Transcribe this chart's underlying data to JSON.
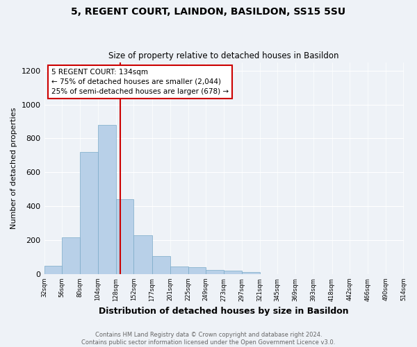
{
  "title": "5, REGENT COURT, LAINDON, BASILDON, SS15 5SU",
  "subtitle": "Size of property relative to detached houses in Basildon",
  "xlabel": "Distribution of detached houses by size in Basildon",
  "ylabel": "Number of detached properties",
  "footer_line1": "Contains HM Land Registry data © Crown copyright and database right 2024.",
  "footer_line2": "Contains public sector information licensed under the Open Government Licence v3.0.",
  "annotation_title": "5 REGENT COURT: 134sqm",
  "annotation_line1": "← 75% of detached houses are smaller (2,044)",
  "annotation_line2": "25% of semi-detached houses are larger (678) →",
  "property_line_x": 134,
  "bar_edges": [
    32,
    56,
    80,
    104,
    128,
    152,
    177,
    201,
    225,
    249,
    273,
    297,
    321,
    345,
    369,
    393,
    418,
    442,
    466,
    490,
    514
  ],
  "bar_heights": [
    50,
    215,
    720,
    880,
    440,
    230,
    105,
    45,
    40,
    25,
    20,
    10,
    0,
    0,
    0,
    0,
    0,
    0,
    0,
    0
  ],
  "bar_color": "#b8d0e8",
  "bar_edge_color": "#7aaac8",
  "vline_color": "#cc0000",
  "annotation_box_color": "#cc0000",
  "background_color": "#eef2f7",
  "ylim": [
    0,
    1250
  ],
  "yticks": [
    0,
    200,
    400,
    600,
    800,
    1000,
    1200
  ],
  "xlim_left": 32,
  "xlim_right": 514
}
